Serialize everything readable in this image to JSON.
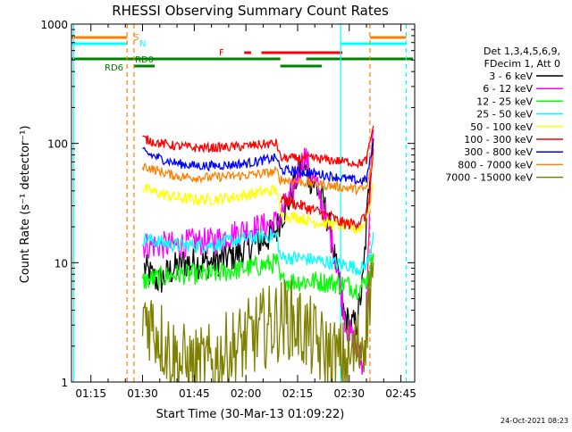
{
  "chart_data": {
    "type": "line",
    "title": "RHESSI Observing Summary Count Rates",
    "xlabel": "Start Time (30-Mar-13 01:09:22)",
    "ylabel": "Count Rate (s⁻¹ detector⁻¹)",
    "yscale": "log",
    "ylim": [
      1,
      1000
    ],
    "xlim": [
      "01:09:22",
      "02:49:00"
    ],
    "x_ticks": [
      "01:15",
      "01:30",
      "01:45",
      "02:00",
      "02:15",
      "02:30",
      "02:45"
    ],
    "y_ticks": [
      "1",
      "10",
      "100",
      "1000"
    ],
    "legend_header": [
      "Det 1,3,4,5,6,9,",
      "FDecim 1, Att 0"
    ],
    "legend_position": "right",
    "timestamp": "24-Oct-2021 08:23",
    "flags": [
      {
        "label": "S",
        "color": "#ff8000",
        "segments": [
          [
            "01:09:22",
            "01:25:30"
          ],
          [
            "02:36:00",
            "02:46:30"
          ]
        ]
      },
      {
        "label": "N",
        "color": "#00ffff",
        "segments": [
          [
            "01:09:22",
            "01:25:30"
          ],
          [
            "02:27:30",
            "02:46:30"
          ]
        ]
      },
      {
        "label": "F",
        "color": "#ff0000",
        "segments": [
          [
            "01:59:30",
            "02:01:30"
          ],
          [
            "02:04:30",
            "02:28:00"
          ]
        ]
      },
      {
        "label": "RD0",
        "color": "#008000",
        "segments": [
          [
            "01:09:22",
            "02:10:00"
          ],
          [
            "02:17:30",
            "02:48:30"
          ]
        ]
      },
      {
        "label": "RD6",
        "color": "#008000",
        "segments": [
          [
            "01:27:30",
            "01:33:30"
          ],
          [
            "02:10:00",
            "02:22:00"
          ]
        ]
      }
    ],
    "vertical_markers": [
      {
        "time": "01:10:00",
        "color": "#00ffff",
        "style": "solid"
      },
      {
        "time": "01:25:30",
        "color": "#ff8000",
        "style": "dashed"
      },
      {
        "time": "01:27:30",
        "color": "#ff8000",
        "style": "dashed"
      },
      {
        "time": "02:27:30",
        "color": "#00ffff",
        "style": "solid"
      },
      {
        "time": "02:36:00",
        "color": "#ff8000",
        "style": "dashed"
      },
      {
        "time": "02:46:30",
        "color": "#00ffff",
        "style": "dashed"
      }
    ],
    "series": [
      {
        "name": "3 - 6 keV",
        "color": "#000000",
        "noise": 0.14,
        "points": [
          [
            "01:30:30",
            9
          ],
          [
            "01:33",
            7.5
          ],
          [
            "01:35",
            7
          ],
          [
            "01:38",
            8.5
          ],
          [
            "01:42",
            10
          ],
          [
            "01:46",
            10
          ],
          [
            "01:50",
            10
          ],
          [
            "01:54",
            11
          ],
          [
            "01:58",
            12
          ],
          [
            "02:02",
            14
          ],
          [
            "02:06",
            16
          ],
          [
            "02:09",
            19
          ],
          [
            "02:10",
            24
          ],
          [
            "02:12",
            30
          ],
          [
            "02:14",
            45
          ],
          [
            "02:16",
            65
          ],
          [
            "02:18",
            55
          ],
          [
            "02:20",
            45
          ],
          [
            "02:22",
            35
          ],
          [
            "02:24",
            22
          ],
          [
            "02:26",
            10
          ],
          [
            "02:28",
            4
          ],
          [
            "02:30",
            3
          ],
          [
            "02:32",
            3
          ],
          [
            "02:34",
            7
          ],
          [
            "02:36",
            60
          ],
          [
            "02:37",
            110
          ]
        ]
      },
      {
        "name": "6 - 12 keV",
        "color": "#ff00ff",
        "noise": 0.12,
        "points": [
          [
            "01:30",
            14
          ],
          [
            "01:34",
            14
          ],
          [
            "01:40",
            14
          ],
          [
            "01:45",
            15
          ],
          [
            "01:50",
            15
          ],
          [
            "01:55",
            17
          ],
          [
            "02:00",
            19
          ],
          [
            "02:05",
            20
          ],
          [
            "02:09",
            22
          ],
          [
            "02:11",
            28
          ],
          [
            "02:13",
            35
          ],
          [
            "02:15",
            55
          ],
          [
            "02:17",
            80
          ],
          [
            "02:19",
            55
          ],
          [
            "02:21",
            40
          ],
          [
            "02:23",
            25
          ],
          [
            "02:25",
            15
          ],
          [
            "02:27",
            8
          ],
          [
            "02:29",
            3
          ],
          [
            "02:32",
            2
          ],
          [
            "02:34",
            1.3
          ],
          [
            "02:35",
            3
          ],
          [
            "02:36",
            40
          ],
          [
            "02:37",
            130
          ]
        ]
      },
      {
        "name": "12 - 25 keV",
        "color": "#00ff00",
        "noise": 0.09,
        "points": [
          [
            "01:30",
            7
          ],
          [
            "01:35",
            7.5
          ],
          [
            "01:40",
            8
          ],
          [
            "01:45",
            8
          ],
          [
            "01:50",
            8
          ],
          [
            "01:55",
            8.5
          ],
          [
            "02:00",
            9
          ],
          [
            "02:05",
            9.5
          ],
          [
            "02:09",
            10
          ],
          [
            "02:10",
            7
          ],
          [
            "02:15",
            7
          ],
          [
            "02:20",
            7
          ],
          [
            "02:25",
            6.8
          ],
          [
            "02:30",
            6.5
          ],
          [
            "02:32",
            6
          ],
          [
            "02:34",
            6.5
          ],
          [
            "02:36",
            8
          ],
          [
            "02:37",
            12
          ]
        ]
      },
      {
        "name": "25 - 50 keV",
        "color": "#00ffff",
        "noise": 0.06,
        "points": [
          [
            "01:30",
            16
          ],
          [
            "01:35",
            15
          ],
          [
            "01:40",
            14
          ],
          [
            "01:45",
            14
          ],
          [
            "01:50",
            14
          ],
          [
            "01:55",
            15
          ],
          [
            "02:00",
            16
          ],
          [
            "02:05",
            16.5
          ],
          [
            "02:09",
            17
          ],
          [
            "02:10",
            11
          ],
          [
            "02:15",
            11
          ],
          [
            "02:20",
            10.5
          ],
          [
            "02:25",
            10
          ],
          [
            "02:30",
            9.5
          ],
          [
            "02:32",
            9
          ],
          [
            "02:34",
            9
          ],
          [
            "02:36",
            11
          ],
          [
            "02:37",
            18
          ]
        ]
      },
      {
        "name": "50 - 100 keV",
        "color": "#ffff00",
        "noise": 0.05,
        "points": [
          [
            "01:30",
            42
          ],
          [
            "01:35",
            38
          ],
          [
            "01:40",
            35
          ],
          [
            "01:45",
            34
          ],
          [
            "01:50",
            34
          ],
          [
            "01:55",
            35
          ],
          [
            "02:00",
            37
          ],
          [
            "02:05",
            39
          ],
          [
            "02:09",
            41
          ],
          [
            "02:10",
            25
          ],
          [
            "02:15",
            24
          ],
          [
            "02:20",
            22
          ],
          [
            "02:25",
            21
          ],
          [
            "02:30",
            20
          ],
          [
            "02:32",
            19
          ],
          [
            "02:34",
            20
          ],
          [
            "02:36",
            30
          ],
          [
            "02:37",
            45
          ]
        ]
      },
      {
        "name": "100 - 300 keV",
        "color": "#ff0000",
        "noise": 0.05,
        "points": [
          [
            "02:10",
            35
          ],
          [
            "02:13",
            32
          ],
          [
            "02:16",
            30
          ],
          [
            "02:19",
            28
          ],
          [
            "02:22",
            26
          ],
          [
            "02:25",
            24
          ],
          [
            "02:27",
            22
          ],
          [
            "02:30",
            21
          ],
          [
            "02:33",
            22
          ],
          [
            "02:35",
            25
          ],
          [
            "02:36",
            40
          ],
          [
            "02:37",
            90
          ]
        ]
      },
      {
        "name": "300 - 800 keV",
        "color": "#0000ff",
        "noise": 0.04,
        "points": [
          [
            "01:30",
            85
          ],
          [
            "01:35",
            75
          ],
          [
            "01:40",
            68
          ],
          [
            "01:45",
            65
          ],
          [
            "01:50",
            65
          ],
          [
            "01:55",
            66
          ],
          [
            "02:00",
            68
          ],
          [
            "02:05",
            72
          ],
          [
            "02:09",
            76
          ],
          [
            "02:10",
            60
          ],
          [
            "02:15",
            58
          ],
          [
            "02:20",
            56
          ],
          [
            "02:25",
            53
          ],
          [
            "02:30",
            50
          ],
          [
            "02:33",
            48
          ],
          [
            "02:35",
            50
          ],
          [
            "02:36",
            70
          ],
          [
            "02:37",
            100
          ]
        ]
      },
      {
        "name": "800 - 7000 keV",
        "color": "#ff8000",
        "noise": 0.04,
        "points": [
          [
            "01:30",
            65
          ],
          [
            "01:35",
            58
          ],
          [
            "01:40",
            53
          ],
          [
            "01:45",
            52
          ],
          [
            "01:50",
            52
          ],
          [
            "01:55",
            53
          ],
          [
            "02:00",
            54
          ],
          [
            "02:05",
            56
          ],
          [
            "02:09",
            58
          ],
          [
            "02:10",
            50
          ],
          [
            "02:15",
            48
          ],
          [
            "02:20",
            46
          ],
          [
            "02:25",
            44
          ],
          [
            "02:30",
            42
          ],
          [
            "02:33",
            41
          ],
          [
            "02:35",
            42
          ],
          [
            "02:36",
            55
          ],
          [
            "02:37",
            80
          ]
        ]
      },
      {
        "name": "7000 - 15000 keV",
        "color": "#808000",
        "noise": 0.35,
        "points": [
          [
            "01:30",
            4
          ],
          [
            "01:33",
            3
          ],
          [
            "01:36",
            2.2
          ],
          [
            "01:40",
            1.5
          ],
          [
            "01:45",
            1.3
          ],
          [
            "01:50",
            1.4
          ],
          [
            "01:55",
            1.8
          ],
          [
            "02:00",
            2.2
          ],
          [
            "02:05",
            2.8
          ],
          [
            "02:09",
            3.2
          ],
          [
            "02:12",
            3.5
          ],
          [
            "02:15",
            3
          ],
          [
            "02:18",
            2.5
          ],
          [
            "02:21",
            2
          ],
          [
            "02:24",
            1.7
          ],
          [
            "02:27",
            1.5
          ],
          [
            "02:30",
            1.5
          ],
          [
            "02:33",
            2
          ],
          [
            "02:35",
            3
          ],
          [
            "02:36",
            6
          ],
          [
            "02:37",
            10
          ]
        ]
      },
      {
        "name": "100 - 300 keV upper",
        "legend": false,
        "color": "#ff0000",
        "noise": 0.04,
        "points": [
          [
            "01:30",
            110
          ],
          [
            "01:35",
            100
          ],
          [
            "01:40",
            95
          ],
          [
            "01:45",
            92
          ],
          [
            "01:50",
            92
          ],
          [
            "01:55",
            93
          ],
          [
            "02:00",
            95
          ],
          [
            "02:05",
            98
          ],
          [
            "02:09",
            100
          ],
          [
            "02:10",
            75
          ],
          [
            "02:15",
            75
          ],
          [
            "02:20",
            75
          ],
          [
            "02:25",
            72
          ],
          [
            "02:30",
            70
          ],
          [
            "02:33",
            68
          ],
          [
            "02:35",
            72
          ],
          [
            "02:36",
            100
          ],
          [
            "02:37",
            140
          ]
        ]
      }
    ]
  }
}
